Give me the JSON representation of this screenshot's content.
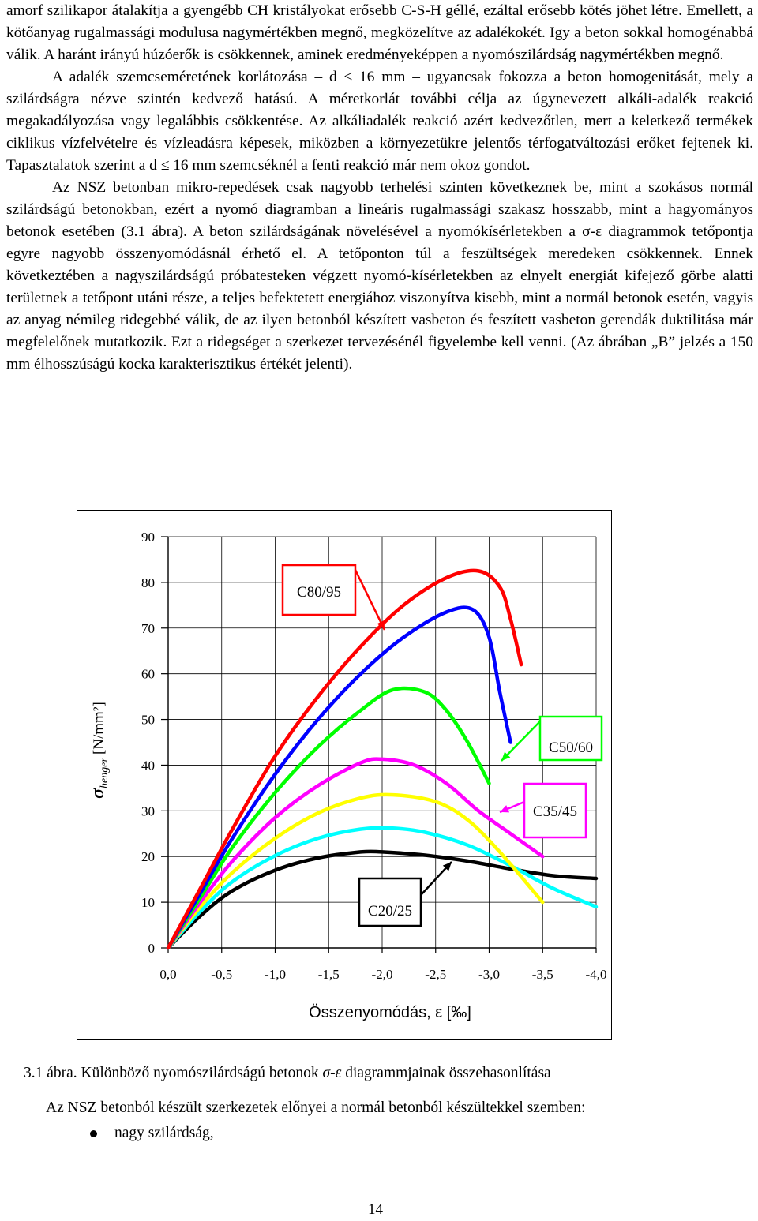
{
  "paragraphs": [
    "amorf szilikapor átalakítja a gyengébb CH kristályokat erősebb C-S-H géllé, ezáltal erősebb kötés jöhet létre. Emellett, a kötőanyag rugalmassági modulusa nagymértékben megnő, megközelítve az adalékokét. Igy a beton sokkal homogénabbá válik. A haránt irányú húzóerők is csökkennek, aminek eredményeképpen a nyomószilárdság nagymértékben megnő.",
    "A adalék szemcseméretének korlátozása – d ≤ 16 mm – ugyancsak fokozza a beton homogenitását, mely a szilárdságra nézve szintén kedvező hatású. A méretkorlát további célja az úgynevezett alkáli-adalék reakció megakadályozása vagy legalábbis csökkentése. Az alkáliadalék reakció azért kedvezőtlen, mert a keletkező termékek ciklikus vízfelvételre és vízleadásra képesek, miközben a környezetükre jelentős térfogatváltozási erőket fejtenek ki. Tapasztalatok szerint a d ≤ 16 mm szemcséknél a fenti reakció már nem okoz gondot.",
    "Az NSZ betonban mikro-repedések csak nagyobb terhelési szinten következnek be, mint a szokásos normál szilárdságú betonokban, ezért a nyomó diagramban a lineáris rugalmassági szakasz hosszabb, mint a hagyományos betonok esetében (3.1 ábra). A beton szilárdságának növelésével a nyomókísérletekben a σ-ε diagrammok tetőpontja egyre nagyobb összenyomódásnál érhető el. A tetőponton túl a feszültségek meredeken csökkennek. Ennek következtében a nagyszilárdságú próbatesteken végzett nyomó-kísérletekben az elnyelt energiát kifejező görbe alatti területnek a tetőpont utáni része, a teljes befektetett energiához viszonyítva kisebb, mint a normál betonok esetén, vagyis az anyag némileg ridegebbé válik, de az ilyen betonból készített vasbeton és feszített vasbeton gerendák duktilitása már megfelelőnek mutatkozik. Ezt a ridegséget a szerkezet tervezésénél figyelembe kell venni. (Az ábrában „B” jelzés a 150 mm élhosszúságú kocka karakterisztikus értékét jelenti)."
  ],
  "chart_data": {
    "type": "line",
    "xlabel": "Összenyomódás, ε [‰]",
    "ylabel_symbol": "σ",
    "ylabel_subscript": "henger",
    "ylabel_unit": "[N/mm²]",
    "x_ticks": [
      "0,0",
      "-0,5",
      "-1,0",
      "-1,5",
      "-2,0",
      "-2,5",
      "-3,0",
      "-3,5",
      "-4,0"
    ],
    "y_ticks": [
      "0",
      "10",
      "20",
      "30",
      "40",
      "50",
      "60",
      "70",
      "80",
      "90"
    ],
    "xlim": [
      0,
      4.0
    ],
    "ylim": [
      0,
      90
    ],
    "grid": true,
    "series": [
      {
        "color": "#000000",
        "x": [
          0,
          0.3,
          0.6,
          1.0,
          1.4,
          1.8,
          2.0,
          2.4,
          2.8,
          3.2,
          3.6,
          4.0
        ],
        "y": [
          0,
          7,
          12.5,
          17,
          19.7,
          21,
          21,
          20.3,
          19,
          17.3,
          15.8,
          15.2
        ]
      },
      {
        "color": "#00FFFF",
        "x": [
          0,
          0.3,
          0.6,
          1.0,
          1.4,
          1.8,
          2.1,
          2.4,
          2.8,
          3.2,
          3.6,
          4.0
        ],
        "y": [
          0,
          8,
          14.5,
          20.2,
          24,
          26,
          26.2,
          25.3,
          22.5,
          18,
          13,
          9
        ]
      },
      {
        "color": "#FFFF00",
        "x": [
          0,
          0.3,
          0.6,
          1.0,
          1.4,
          1.8,
          2.1,
          2.5,
          2.8,
          3.1,
          3.5
        ],
        "y": [
          0,
          9,
          16.5,
          24,
          29.5,
          32.8,
          33.5,
          32,
          28,
          21,
          10
        ]
      },
      {
        "color": "#FF00FF",
        "x": [
          0,
          0.3,
          0.6,
          1.0,
          1.4,
          1.8,
          2.0,
          2.3,
          2.6,
          2.9,
          3.2,
          3.5
        ],
        "y": [
          0,
          10,
          19,
          28.5,
          35.5,
          40.5,
          41.3,
          40,
          36,
          30,
          25,
          20
        ]
      },
      {
        "color": "#00FF00",
        "x": [
          0,
          0.3,
          0.6,
          1.0,
          1.4,
          1.8,
          2.1,
          2.4,
          2.6,
          2.8,
          3.0
        ],
        "y": [
          0,
          11,
          22,
          34,
          44,
          52,
          56.5,
          56,
          52,
          45,
          36
        ]
      },
      {
        "color": "#0000FF",
        "x": [
          0,
          0.3,
          0.6,
          1.0,
          1.4,
          1.8,
          2.2,
          2.6,
          2.85,
          3.0,
          3.1,
          3.2
        ],
        "y": [
          0,
          12,
          24,
          38,
          50,
          60,
          68,
          73.5,
          74,
          68,
          56,
          45
        ]
      },
      {
        "color": "#FF0000",
        "x": [
          0,
          0.3,
          0.6,
          1.0,
          1.4,
          1.8,
          2.2,
          2.6,
          2.9,
          3.1,
          3.2,
          3.3
        ],
        "y": [
          0,
          13,
          26,
          42,
          55,
          66,
          75,
          81,
          82.5,
          79,
          72,
          62
        ]
      }
    ],
    "annotations": [
      {
        "text": "C80/95",
        "box_color": "#FF0000",
        "arrow_color": "#FF0000"
      },
      {
        "text": "C50/60",
        "box_color": "#00FF00",
        "arrow_color": "#00FF00"
      },
      {
        "text": "C35/45",
        "box_color": "#FF00FF",
        "arrow_color": "#FF00FF"
      },
      {
        "text": "C20/25",
        "box_color": "#000000",
        "arrow_color": "#000000"
      }
    ]
  },
  "caption": {
    "prefix": "3.1 ábra. Különböző nyomószilárdságú betonok ",
    "sigma": "σ",
    "dash": "-",
    "eps": "ε",
    "suffix": " diagrammjainak összehasonlítása"
  },
  "after_text": "Az NSZ betonból készült szerkezetek előnyei a normál betonból készültekkel szemben:",
  "bullets": [
    "nagy szilárdság,"
  ],
  "page_number": "14"
}
